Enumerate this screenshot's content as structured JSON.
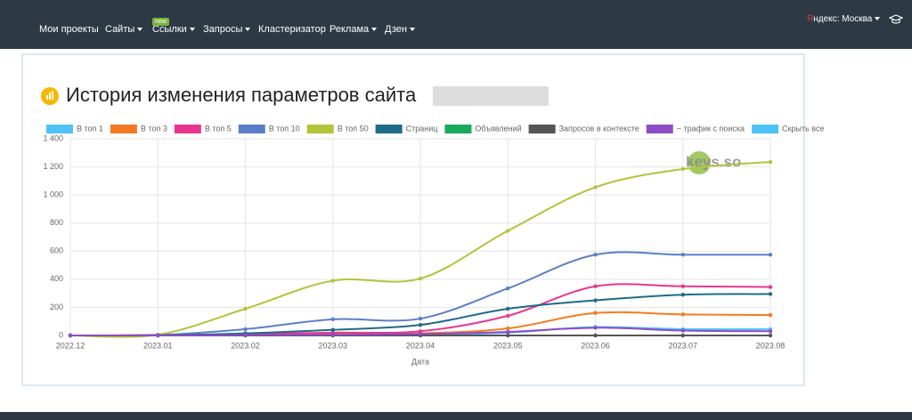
{
  "nav": {
    "items": [
      "Мои проекты",
      "Сайты",
      "Ссылки",
      "Запросы",
      "Кластеризатор",
      "Реклама",
      "Дзен"
    ],
    "badge": "new",
    "region": "Яндекс: Москва"
  },
  "chart_data": {
    "type": "line",
    "title": "История изменения параметров сайта",
    "watermark": "keys.so",
    "x_label": "Дата",
    "legend_hide_all": "Скрыть все",
    "categories": [
      "2022.12",
      "2023.01",
      "2023.02",
      "2023.03",
      "2023.04",
      "2023.05",
      "2023.06",
      "2023.07",
      "2023.08"
    ],
    "ylim": [
      0,
      1400
    ],
    "yticks": [
      0,
      200,
      400,
      600,
      800,
      {
        "value": 1000,
        "label": "1 000"
      },
      {
        "value": 1200,
        "label": "1 200"
      },
      {
        "value": 1400,
        "label": "1 400"
      }
    ],
    "grid": true,
    "series": [
      {
        "name": "В топ 1",
        "color": "#4fc3f7",
        "values": [
          0,
          0,
          2,
          5,
          5,
          20,
          60,
          45,
          45
        ]
      },
      {
        "name": "В топ 3",
        "color": "#f47a20",
        "values": [
          0,
          1,
          5,
          10,
          15,
          50,
          160,
          150,
          145
        ]
      },
      {
        "name": "В топ 5",
        "color": "#e8368f",
        "values": [
          0,
          2,
          10,
          20,
          30,
          140,
          350,
          350,
          345
        ]
      },
      {
        "name": "В топ 10",
        "color": "#5b7fc7",
        "values": [
          0,
          3,
          45,
          115,
          120,
          335,
          575,
          575,
          575
        ]
      },
      {
        "name": "В топ 50",
        "color": "#b2c43a",
        "values": [
          0,
          5,
          190,
          390,
          405,
          745,
          1055,
          1185,
          1235
        ]
      },
      {
        "name": "Страниц",
        "color": "#1f6a8a",
        "values": [
          0,
          2,
          15,
          40,
          75,
          190,
          250,
          290,
          295
        ]
      },
      {
        "name": "Объявлений",
        "color": "#1aa85f",
        "values": [
          0,
          0,
          0,
          0,
          0,
          0,
          0,
          0,
          0
        ]
      },
      {
        "name": "Запросов в контексте",
        "color": "#555555",
        "values": [
          0,
          0,
          0,
          0,
          0,
          0,
          0,
          0,
          0
        ]
      },
      {
        "name": "~ трафик с поиска",
        "color": "#8e4cc6",
        "values": [
          0,
          0,
          2,
          5,
          10,
          25,
          55,
          35,
          30
        ]
      }
    ]
  }
}
